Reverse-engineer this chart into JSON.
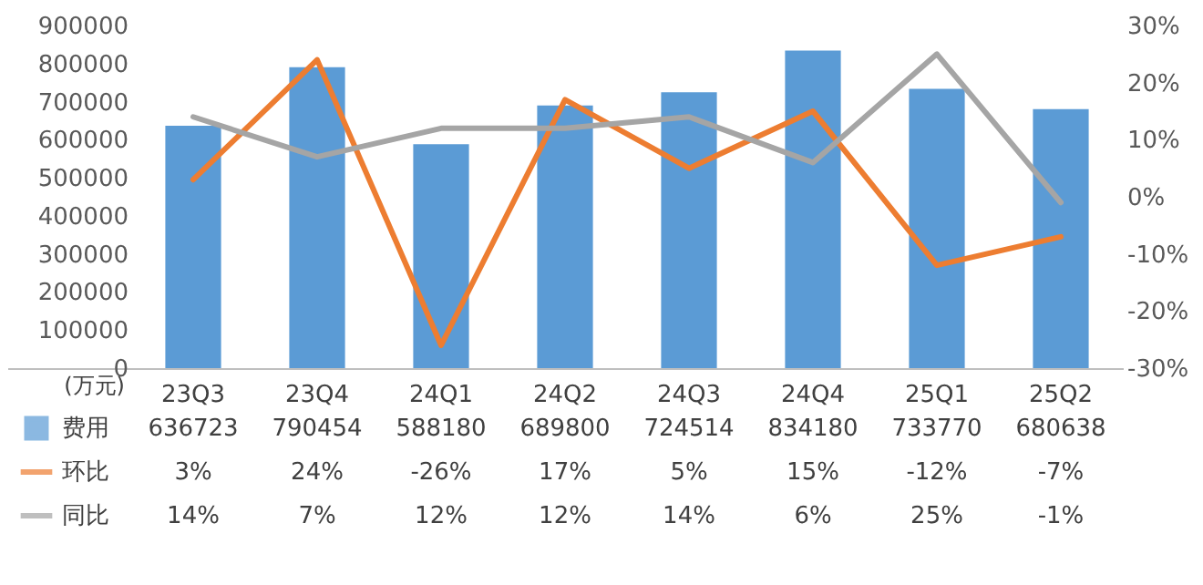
{
  "chart_data": {
    "type": "bar",
    "ylabel": "(万元)",
    "categories": [
      "23Q3",
      "23Q4",
      "24Q1",
      "24Q2",
      "24Q3",
      "24Q4",
      "25Q1",
      "25Q2"
    ],
    "series": [
      {
        "name": "费用",
        "color": "#5b9bd5",
        "values": [
          636723,
          790454,
          588180,
          689800,
          724514,
          834180,
          733770,
          680638
        ],
        "value_labels": [
          "636723",
          "790454",
          "588180",
          "689800",
          "724514",
          "834180",
          "733770",
          "680638"
        ]
      },
      {
        "name": "环比",
        "type": "line",
        "axis": "y2",
        "color": "#ed7d31",
        "values": [
          3,
          24,
          -26,
          17,
          5,
          15,
          -12,
          -7
        ],
        "value_labels": [
          "3%",
          "24%",
          "-26%",
          "17%",
          "5%",
          "15%",
          "-12%",
          "-7%"
        ]
      },
      {
        "name": "同比",
        "type": "line",
        "axis": "y2",
        "color": "#a5a5a5",
        "values": [
          14,
          7,
          12,
          12,
          14,
          6,
          25,
          -1
        ],
        "value_labels": [
          "14%",
          "7%",
          "12%",
          "12%",
          "14%",
          "6%",
          "25%",
          "-1%"
        ]
      }
    ],
    "ylim": [
      0,
      900000
    ],
    "yticks": [
      0,
      100000,
      200000,
      300000,
      400000,
      500000,
      600000,
      700000,
      800000,
      900000
    ],
    "y2lim": [
      -30,
      30
    ],
    "y2ticks": [
      {
        "value": -30,
        "label": "-30%"
      },
      {
        "value": -20,
        "label": "-20%"
      },
      {
        "value": -10,
        "label": "-10%"
      },
      {
        "value": 0,
        "label": "0%"
      },
      {
        "value": 10,
        "label": "10%"
      },
      {
        "value": 20,
        "label": "20%"
      },
      {
        "value": 30,
        "label": "30%"
      }
    ],
    "legend": "bottom",
    "grid": false
  }
}
